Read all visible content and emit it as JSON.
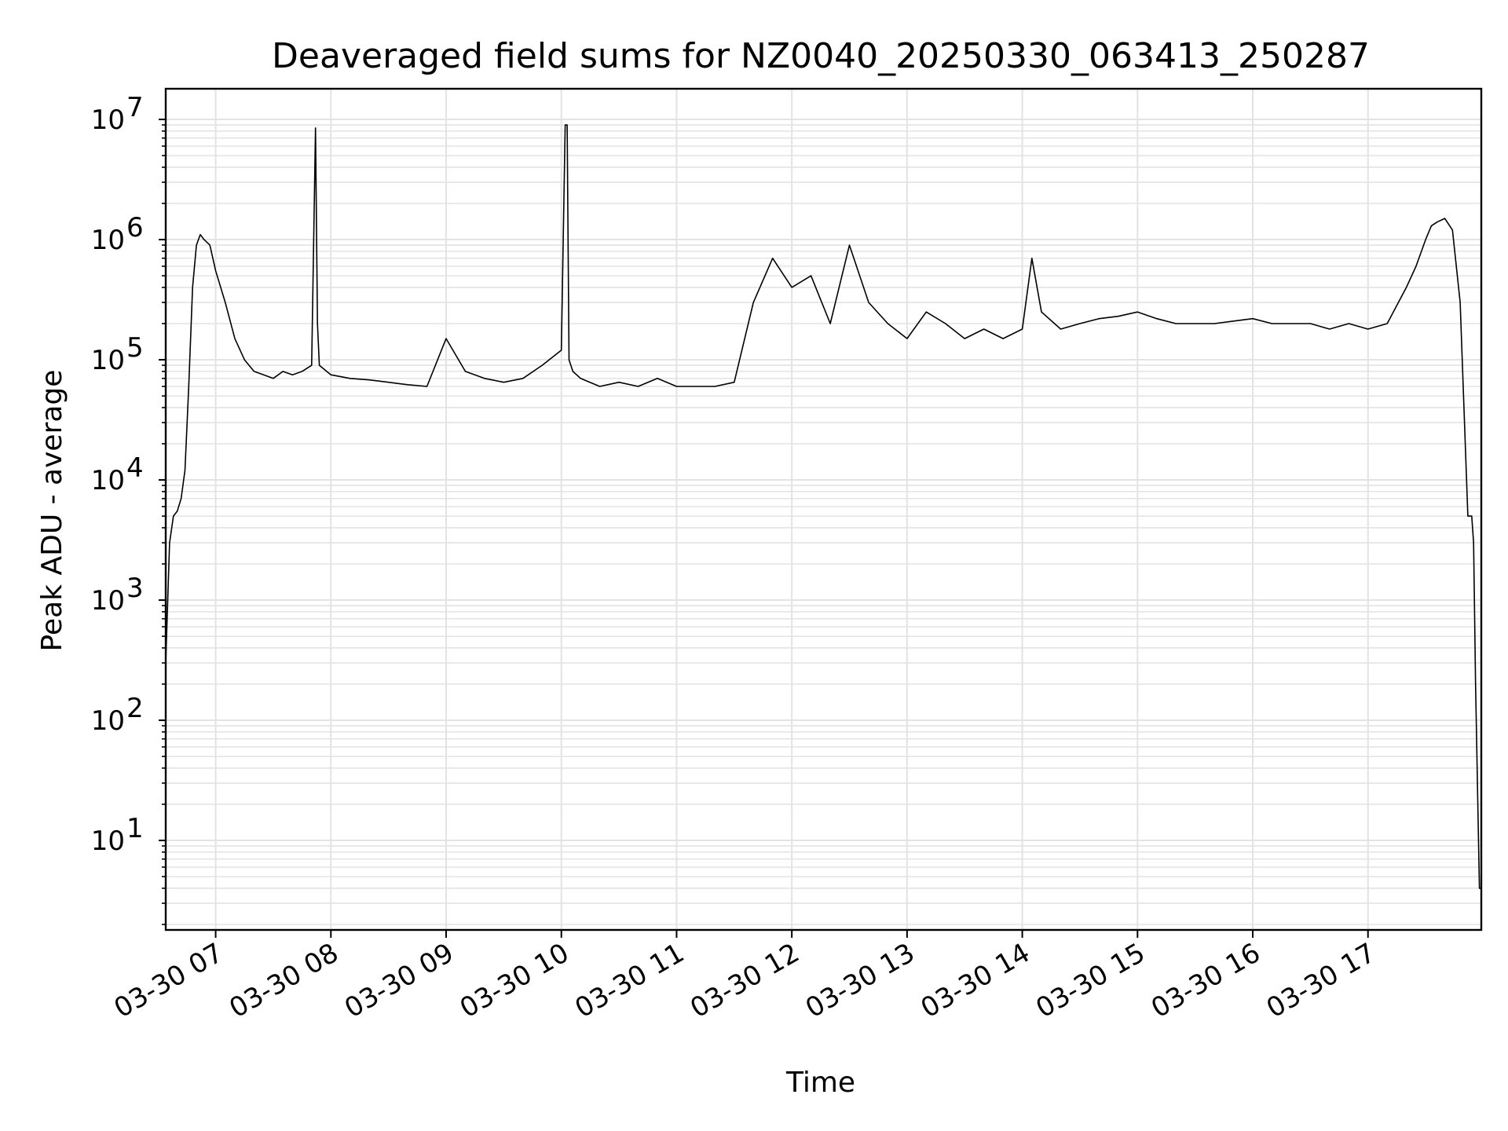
{
  "chart_data": {
    "type": "line",
    "title": "Deaveraged field sums for NZ0040_20250330_063413_250287",
    "xlabel": "Time",
    "ylabel": "Peak ADU - average",
    "yscale": "log",
    "ylim": [
      1.8,
      18000000
    ],
    "xlim": [
      "03-30 06:34",
      "03-30 17:59"
    ],
    "grid": true,
    "line_color": "#000000",
    "grid_color": "#e3e3e3",
    "x_ticks": [
      "03-30 07",
      "03-30 08",
      "03-30 09",
      "03-30 10",
      "03-30 11",
      "03-30 12",
      "03-30 13",
      "03-30 14",
      "03-30 15",
      "03-30 16",
      "03-30 17"
    ],
    "y_ticks": [
      {
        "value": 10,
        "base": "10",
        "exp": "1"
      },
      {
        "value": 100,
        "base": "10",
        "exp": "2"
      },
      {
        "value": 1000,
        "base": "10",
        "exp": "3"
      },
      {
        "value": 10000,
        "base": "10",
        "exp": "4"
      },
      {
        "value": 100000,
        "base": "10",
        "exp": "5"
      },
      {
        "value": 1000000,
        "base": "10",
        "exp": "6"
      },
      {
        "value": 10000000,
        "base": "10",
        "exp": "7"
      }
    ],
    "series": [
      {
        "x": [
          "03-30 06:34",
          "03-30 06:36",
          "03-30 06:38",
          "03-30 06:40",
          "03-30 06:42",
          "03-30 06:44",
          "03-30 06:46",
          "03-30 06:48",
          "03-30 06:50",
          "03-30 06:52",
          "03-30 06:54",
          "03-30 06:57",
          "03-30 07:00",
          "03-30 07:05",
          "03-30 07:10",
          "03-30 07:15",
          "03-30 07:20",
          "03-30 07:25",
          "03-30 07:30",
          "03-30 07:35",
          "03-30 07:40",
          "03-30 07:45",
          "03-30 07:50",
          "03-30 07:52",
          "03-30 07:53",
          "03-30 07:54",
          "03-30 08:00",
          "03-30 08:10",
          "03-30 08:20",
          "03-30 08:30",
          "03-30 08:40",
          "03-30 08:50",
          "03-30 09:00",
          "03-30 09:10",
          "03-30 09:20",
          "03-30 09:30",
          "03-30 09:40",
          "03-30 09:50",
          "03-30 10:00",
          "03-30 10:02",
          "03-30 10:03",
          "03-30 10:04",
          "03-30 10:06",
          "03-30 10:10",
          "03-30 10:20",
          "03-30 10:30",
          "03-30 10:40",
          "03-30 10:50",
          "03-30 11:00",
          "03-30 11:10",
          "03-30 11:20",
          "03-30 11:30",
          "03-30 11:40",
          "03-30 11:50",
          "03-30 12:00",
          "03-30 12:10",
          "03-30 12:20",
          "03-30 12:30",
          "03-30 12:40",
          "03-30 12:50",
          "03-30 13:00",
          "03-30 13:10",
          "03-30 13:20",
          "03-30 13:30",
          "03-30 13:40",
          "03-30 13:50",
          "03-30 14:00",
          "03-30 14:05",
          "03-30 14:10",
          "03-30 14:20",
          "03-30 14:30",
          "03-30 14:40",
          "03-30 14:50",
          "03-30 15:00",
          "03-30 15:10",
          "03-30 15:20",
          "03-30 15:30",
          "03-30 15:40",
          "03-30 15:50",
          "03-30 16:00",
          "03-30 16:10",
          "03-30 16:20",
          "03-30 16:30",
          "03-30 16:40",
          "03-30 16:50",
          "03-30 17:00",
          "03-30 17:10",
          "03-30 17:20",
          "03-30 17:25",
          "03-30 17:30",
          "03-30 17:33",
          "03-30 17:36",
          "03-30 17:40",
          "03-30 17:44",
          "03-30 17:48",
          "03-30 17:52",
          "03-30 17:54",
          "03-30 17:55",
          "03-30 17:56",
          "03-30 17:58",
          "03-30 17:59"
        ],
        "y": [
          300,
          3000,
          5000,
          5500,
          7000,
          12000,
          60000,
          400000,
          900000,
          1100000,
          1000000,
          900000,
          550000,
          300000,
          150000,
          100000,
          80000,
          75000,
          70000,
          80000,
          75000,
          80000,
          90000,
          8500000,
          200000,
          90000,
          75000,
          70000,
          68000,
          65000,
          62000,
          60000,
          150000,
          80000,
          70000,
          65000,
          70000,
          90000,
          120000,
          9000000,
          9000000,
          100000,
          80000,
          70000,
          60000,
          65000,
          60000,
          70000,
          60000,
          60000,
          60000,
          65000,
          300000,
          700000,
          400000,
          500000,
          200000,
          900000,
          300000,
          200000,
          150000,
          250000,
          200000,
          150000,
          180000,
          150000,
          180000,
          700000,
          250000,
          180000,
          200000,
          220000,
          230000,
          250000,
          220000,
          200000,
          200000,
          200000,
          210000,
          220000,
          200000,
          200000,
          200000,
          180000,
          200000,
          180000,
          200000,
          400000,
          600000,
          1000000,
          1300000,
          1400000,
          1500000,
          1200000,
          300000,
          5000,
          5000,
          3000,
          200,
          4,
          4
        ]
      }
    ]
  }
}
